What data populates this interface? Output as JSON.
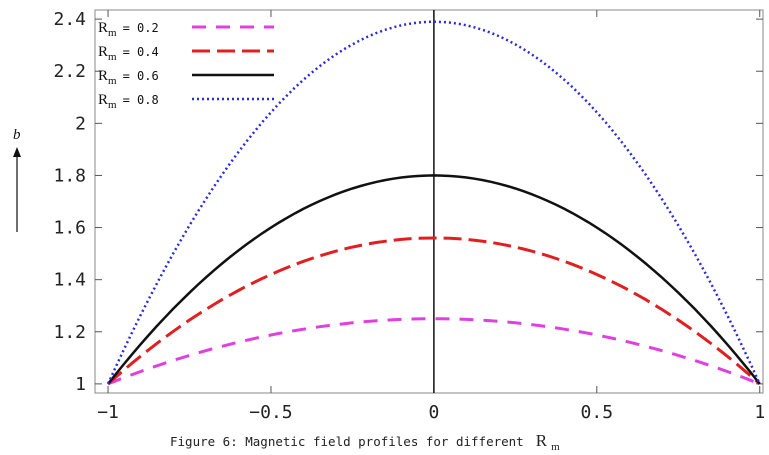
{
  "chart_data": {
    "type": "line",
    "title": "",
    "xlabel": "",
    "ylabel": "b",
    "xlim": [
      -1,
      1
    ],
    "ylim": [
      1,
      2.4
    ],
    "x_ticks": [
      "-1",
      "-0.5",
      "0",
      "0.5",
      "1"
    ],
    "y_ticks": [
      "1",
      "1.2",
      "1.4",
      "1.6",
      "1.8",
      "2",
      "2.2",
      "2.4"
    ],
    "legend_position": "top-left",
    "caption_prefix": "Figure 6: Magnetic field profiles for different",
    "caption_symbol": "R",
    "caption_subscript": "m",
    "series": [
      {
        "name": "Rm = 0.2",
        "symbol": "R",
        "subscript": "m",
        "value_text": "= 0.2",
        "color": "#e040e0",
        "dash": "14,10",
        "width": 3,
        "x": [
          -1,
          0,
          1
        ],
        "y": [
          1,
          1.25,
          1
        ]
      },
      {
        "name": "Rm = 0.4",
        "symbol": "R",
        "subscript": "m",
        "value_text": "= 0.4",
        "color": "#e02020",
        "dash": "18,7",
        "width": 3,
        "x": [
          -1,
          0,
          1
        ],
        "y": [
          1,
          1.56,
          1
        ]
      },
      {
        "name": "Rm = 0.6",
        "symbol": "R",
        "subscript": "m",
        "value_text": "= 0.6",
        "color": "#111111",
        "dash": "",
        "width": 2.5,
        "x": [
          -1,
          0,
          1
        ],
        "y": [
          1,
          1.8,
          1
        ]
      },
      {
        "name": "Rm = 0.8",
        "symbol": "R",
        "subscript": "m",
        "value_text": "= 0.8",
        "color": "#2b2bdc",
        "dash": "2,3",
        "width": 2.5,
        "x": [
          -1,
          0,
          1
        ],
        "y": [
          1,
          2.39,
          1
        ]
      }
    ]
  }
}
